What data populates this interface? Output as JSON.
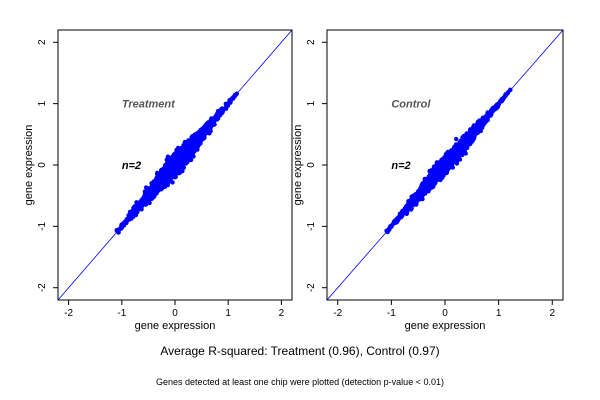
{
  "caption": "Average R-squared: Treatment (0.96), Control (0.97)",
  "footnote": "Genes detected at least one chip were plotted (detection p-value < 0.01)",
  "colors": {
    "points": "#0000ff",
    "identity_line": "#0000ff",
    "frame": "#000000",
    "panel_label": "#555555"
  },
  "chart_data": [
    {
      "type": "scatter",
      "panel_label": "Treatment",
      "n_label": "n=2",
      "xlabel": "gene expression",
      "ylabel": "gene expression",
      "xlim": [
        -2.2,
        2.2
      ],
      "ylim": [
        -2.2,
        2.2
      ],
      "xticks": [
        -2,
        -1,
        0,
        1,
        2
      ],
      "yticks": [
        -2,
        -1,
        0,
        1,
        2
      ],
      "identity_line": true,
      "grid": false,
      "cloud": {
        "x_range": [
          -1.1,
          1.2
        ],
        "y_range": [
          -1.1,
          1.3
        ],
        "center": [
          0.0,
          0.0
        ],
        "r_squared": 0.96
      }
    },
    {
      "type": "scatter",
      "panel_label": "Control",
      "n_label": "n=2",
      "xlabel": "gene expression",
      "ylabel": "gene expression",
      "xlim": [
        -2.2,
        2.2
      ],
      "ylim": [
        -2.2,
        2.2
      ],
      "xticks": [
        -2,
        -1,
        0,
        1,
        2
      ],
      "yticks": [
        -2,
        -1,
        0,
        1,
        2
      ],
      "identity_line": true,
      "grid": false,
      "cloud": {
        "x_range": [
          -1.1,
          1.25
        ],
        "y_range": [
          -1.1,
          1.25
        ],
        "center": [
          0.0,
          0.0
        ],
        "r_squared": 0.97
      }
    }
  ]
}
